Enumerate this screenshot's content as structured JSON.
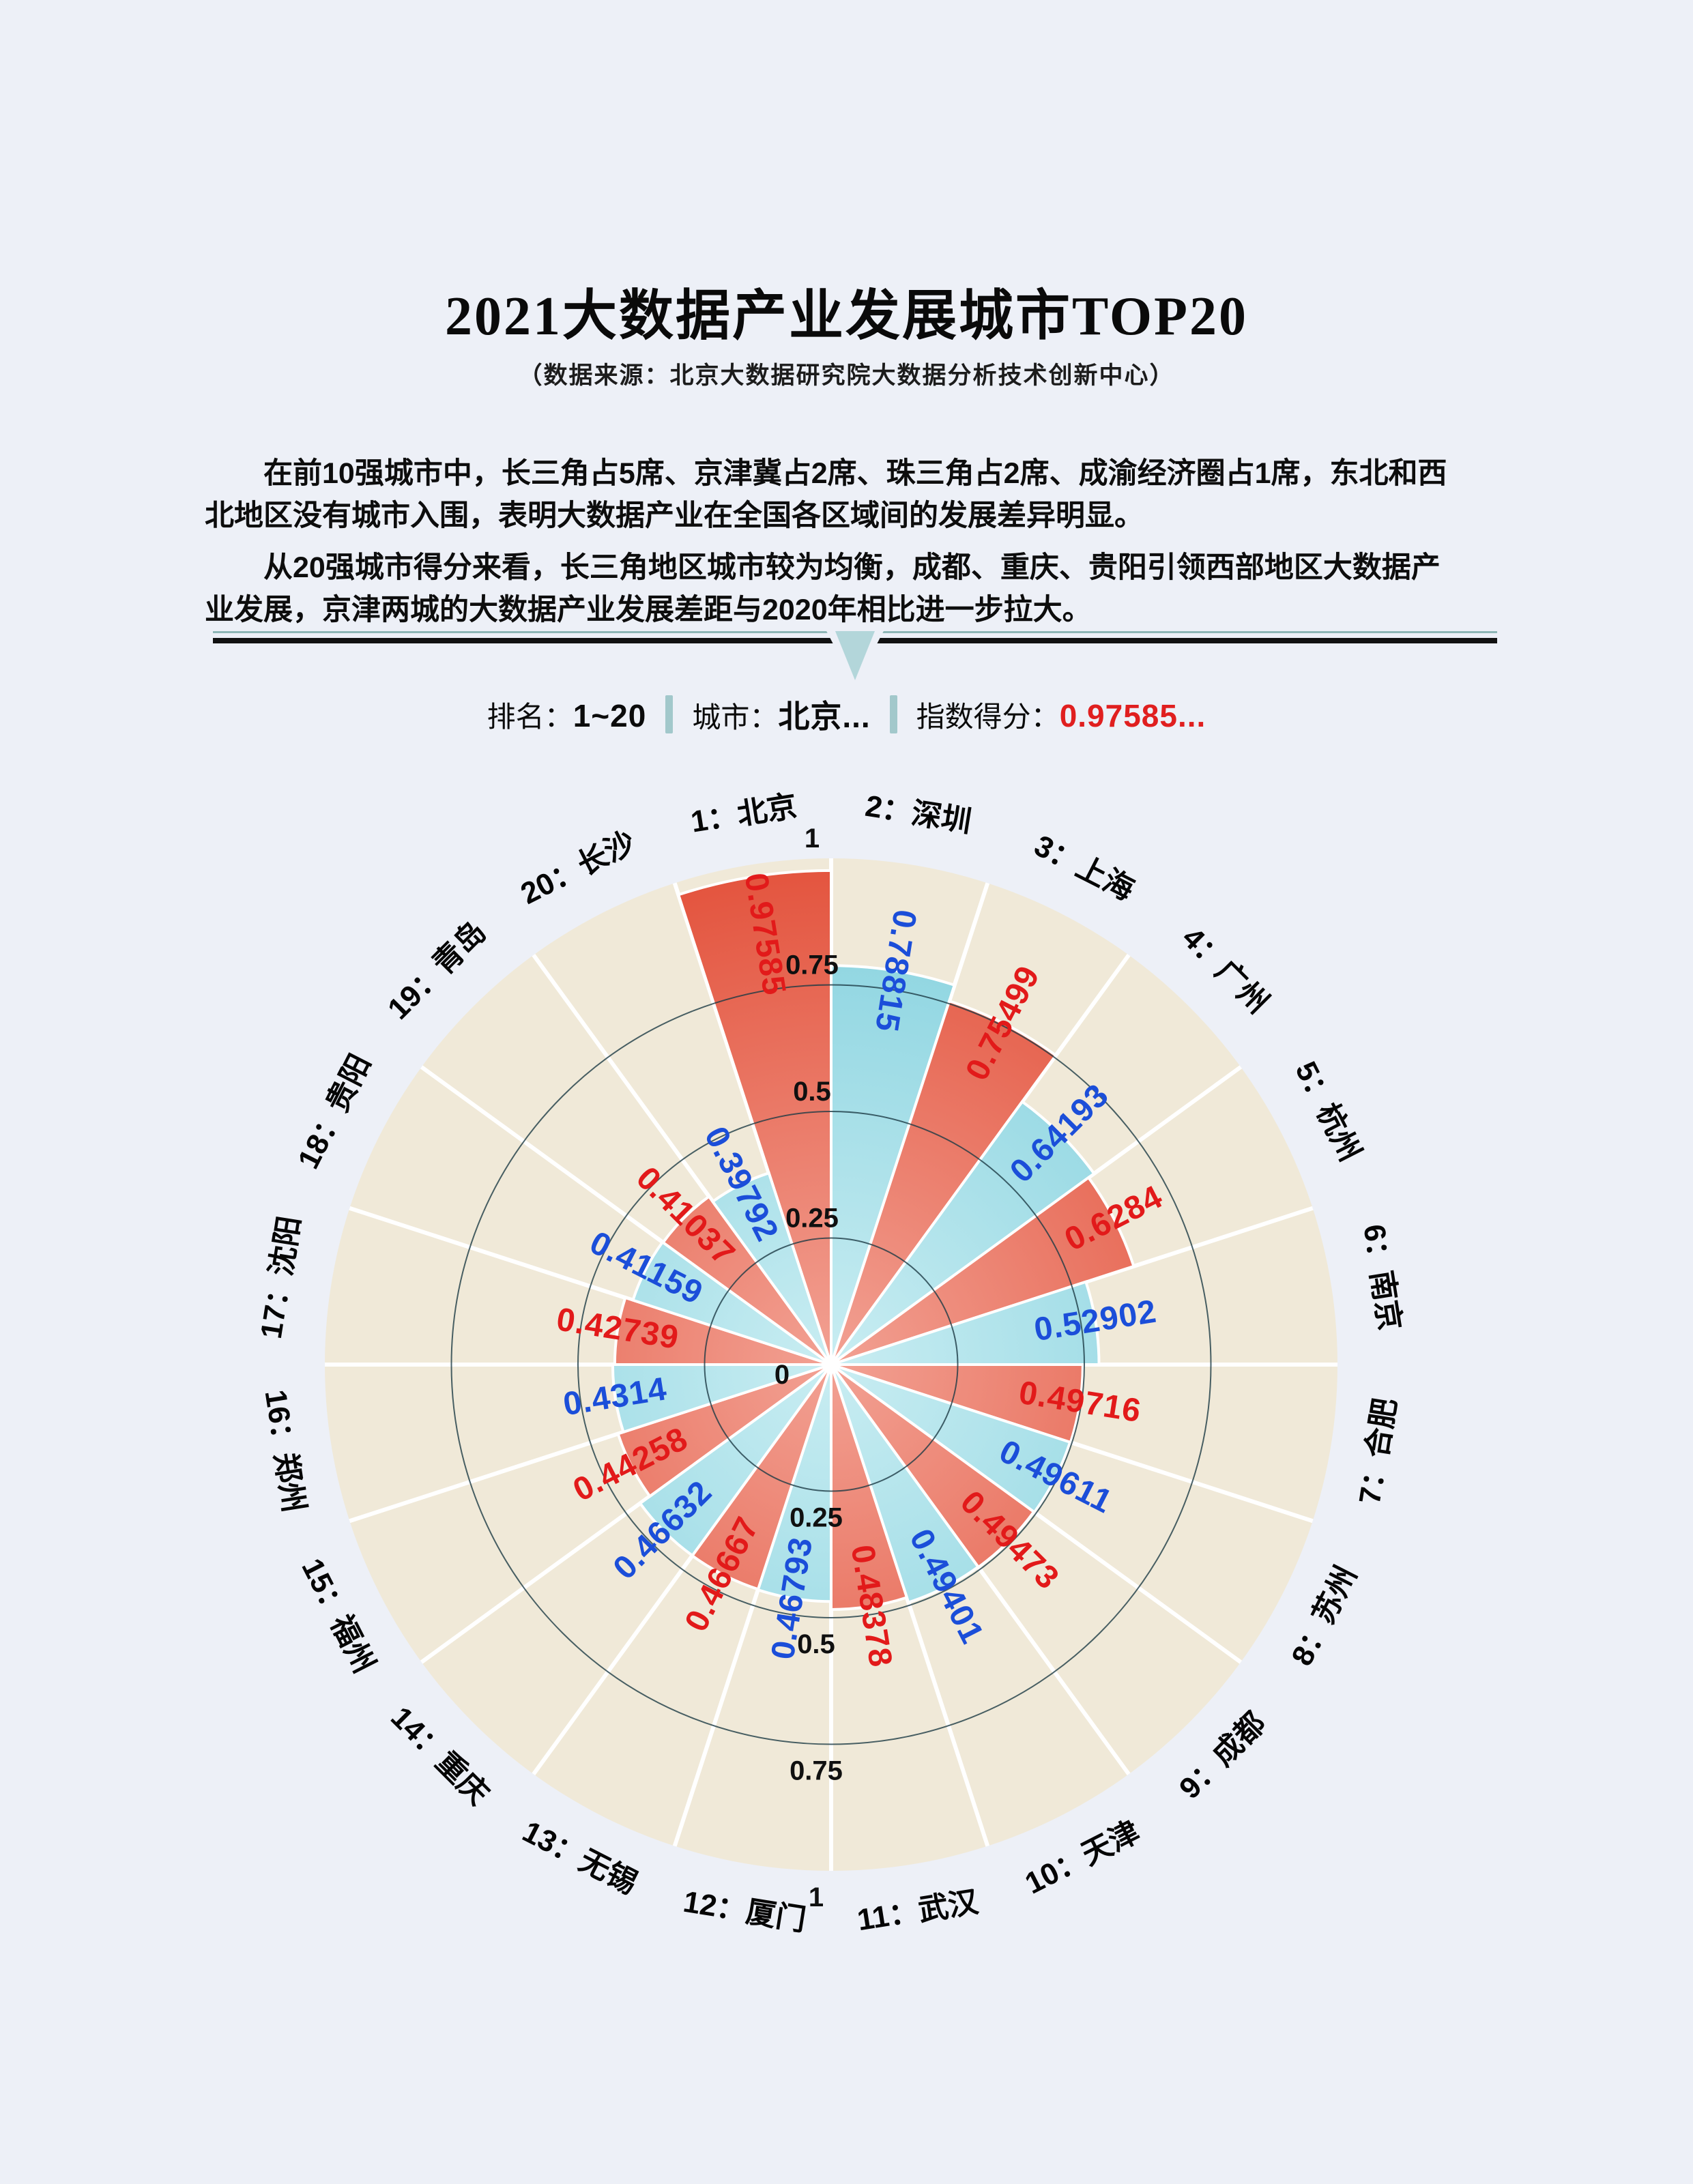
{
  "page": {
    "background": "#edf0f7"
  },
  "header": {
    "title": "2021大数据产业发展城市TOP20",
    "subtitle": "（数据来源：北京大数据研究院大数据分析技术创新中心）"
  },
  "intro": {
    "para1": "在前10强城市中，长三角占5席、京津冀占2席、珠三角占2席、成渝经济圈占1席，东北和西北地区没有城市入围，表明大数据产业在全国各区域间的发展差异明显。",
    "para2": "从20强城市得分来看，长三角地区城市较为均衡，成都、重庆、贵阳引领西部地区大数据产业发展，京津两城的大数据产业发展差距与2020年相比进一步拉大。"
  },
  "legend": {
    "rank_label": "排名：",
    "rank_value": "1~20",
    "city_label": "城市：",
    "city_value": "北京...",
    "score_label": "指数得分：",
    "score_value": "0.97585...",
    "score_color": "#e01f1f",
    "separator_color": "#a2c8cb"
  },
  "chart_data": {
    "type": "bar",
    "subtype": "polar-nightingale",
    "title": "2021大数据产业发展城市TOP20 指数得分",
    "rlim": [
      0,
      1
    ],
    "radial_ticks": [
      0,
      0.25,
      0.5,
      0.75,
      1
    ],
    "grid": "on",
    "categories": [
      "1：北京",
      "2：深圳",
      "3：上海",
      "4：广州",
      "5：杭州",
      "6：南京",
      "7：合肥",
      "8：苏州",
      "9：成都",
      "10：天津",
      "11：武汉",
      "12：厦门",
      "13：无锡",
      "14：重庆",
      "15：福州",
      "16：郑州",
      "17：沈阳",
      "18：贵阳",
      "19：青岛",
      "20：长沙"
    ],
    "series": [
      {
        "name": "指数得分",
        "values": [
          0.97585,
          0.78815,
          0.75499,
          0.64193,
          0.6284,
          0.52902,
          0.49716,
          0.49611,
          0.49473,
          0.49401,
          0.48378,
          0.46793,
          0.46667,
          0.46632,
          0.44258,
          0.4314,
          0.42739,
          0.41159,
          0.41037,
          0.39792
        ]
      }
    ],
    "cities": [
      {
        "rank": 1,
        "name": "北京",
        "value": 0.97585,
        "palette": "red"
      },
      {
        "rank": 2,
        "name": "深圳",
        "value": 0.78815,
        "palette": "cyan"
      },
      {
        "rank": 3,
        "name": "上海",
        "value": 0.75499,
        "palette": "red"
      },
      {
        "rank": 4,
        "name": "广州",
        "value": 0.64193,
        "palette": "cyan"
      },
      {
        "rank": 5,
        "name": "杭州",
        "value": 0.6284,
        "palette": "red"
      },
      {
        "rank": 6,
        "name": "南京",
        "value": 0.52902,
        "palette": "cyan"
      },
      {
        "rank": 7,
        "name": "合肥",
        "value": 0.49716,
        "palette": "red"
      },
      {
        "rank": 8,
        "name": "苏州",
        "value": 0.49611,
        "palette": "cyan"
      },
      {
        "rank": 9,
        "name": "成都",
        "value": 0.49473,
        "palette": "red"
      },
      {
        "rank": 10,
        "name": "天津",
        "value": 0.49401,
        "palette": "cyan"
      },
      {
        "rank": 11,
        "name": "武汉",
        "value": 0.48378,
        "palette": "red"
      },
      {
        "rank": 12,
        "name": "厦门",
        "value": 0.46793,
        "palette": "cyan"
      },
      {
        "rank": 13,
        "name": "无锡",
        "value": 0.46667,
        "palette": "red"
      },
      {
        "rank": 14,
        "name": "重庆",
        "value": 0.46632,
        "palette": "cyan"
      },
      {
        "rank": 15,
        "name": "福州",
        "value": 0.44258,
        "palette": "red"
      },
      {
        "rank": 16,
        "name": "郑州",
        "value": 0.4314,
        "palette": "cyan"
      },
      {
        "rank": 17,
        "name": "沈阳",
        "value": 0.42739,
        "palette": "red"
      },
      {
        "rank": 18,
        "name": "贵阳",
        "value": 0.41159,
        "palette": "cyan"
      },
      {
        "rank": 19,
        "name": "青岛",
        "value": 0.41037,
        "palette": "red"
      },
      {
        "rank": 20,
        "name": "长沙",
        "value": 0.39792,
        "palette": "cyan"
      }
    ],
    "colors": {
      "disc": "#f0e9d8",
      "grid": "#1d3b45",
      "red_inner": "#f2a193",
      "red_outer": "#e3533d",
      "cyan_inner": "#c9edf2",
      "cyan_outer": "#84d1de",
      "value_label_red": "#e21a1a",
      "value_label_blue": "#1b4ed9",
      "tick_label": "#101010",
      "city_label": "#050505",
      "divider_white": "#ffffff"
    }
  }
}
